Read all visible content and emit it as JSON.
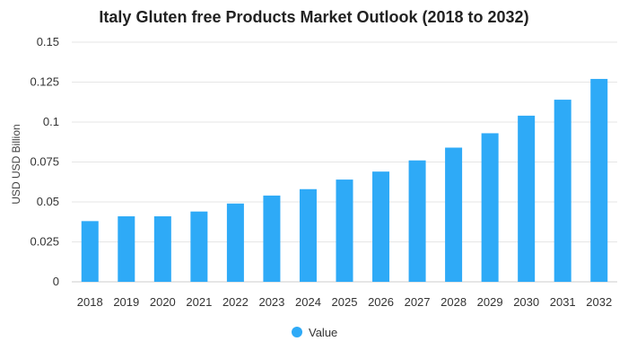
{
  "chart_data": {
    "type": "bar",
    "title": "Italy Gluten free Products Market Outlook (2018 to 2032)",
    "xlabel": "",
    "ylabel": "USD USD Billion",
    "categories": [
      "2018",
      "2019",
      "2020",
      "2021",
      "2022",
      "2023",
      "2024",
      "2025",
      "2026",
      "2027",
      "2028",
      "2029",
      "2030",
      "2031",
      "2032"
    ],
    "series": [
      {
        "name": "Value",
        "values": [
          0.038,
          0.041,
          0.041,
          0.044,
          0.049,
          0.054,
          0.058,
          0.064,
          0.069,
          0.076,
          0.084,
          0.093,
          0.104,
          0.114,
          0.127
        ]
      }
    ],
    "ylim": [
      0,
      0.15
    ],
    "yticks": [
      0,
      0.025,
      0.05,
      0.075,
      0.1,
      0.125,
      0.15
    ],
    "ytick_labels": [
      "0",
      "0.025",
      "0.05",
      "0.075",
      "0.1",
      "0.125",
      "0.15"
    ],
    "grid": true,
    "legend_position": "bottom-center",
    "colors": {
      "bar": "#2eaaf7",
      "grid": "#e6e6e6"
    }
  }
}
